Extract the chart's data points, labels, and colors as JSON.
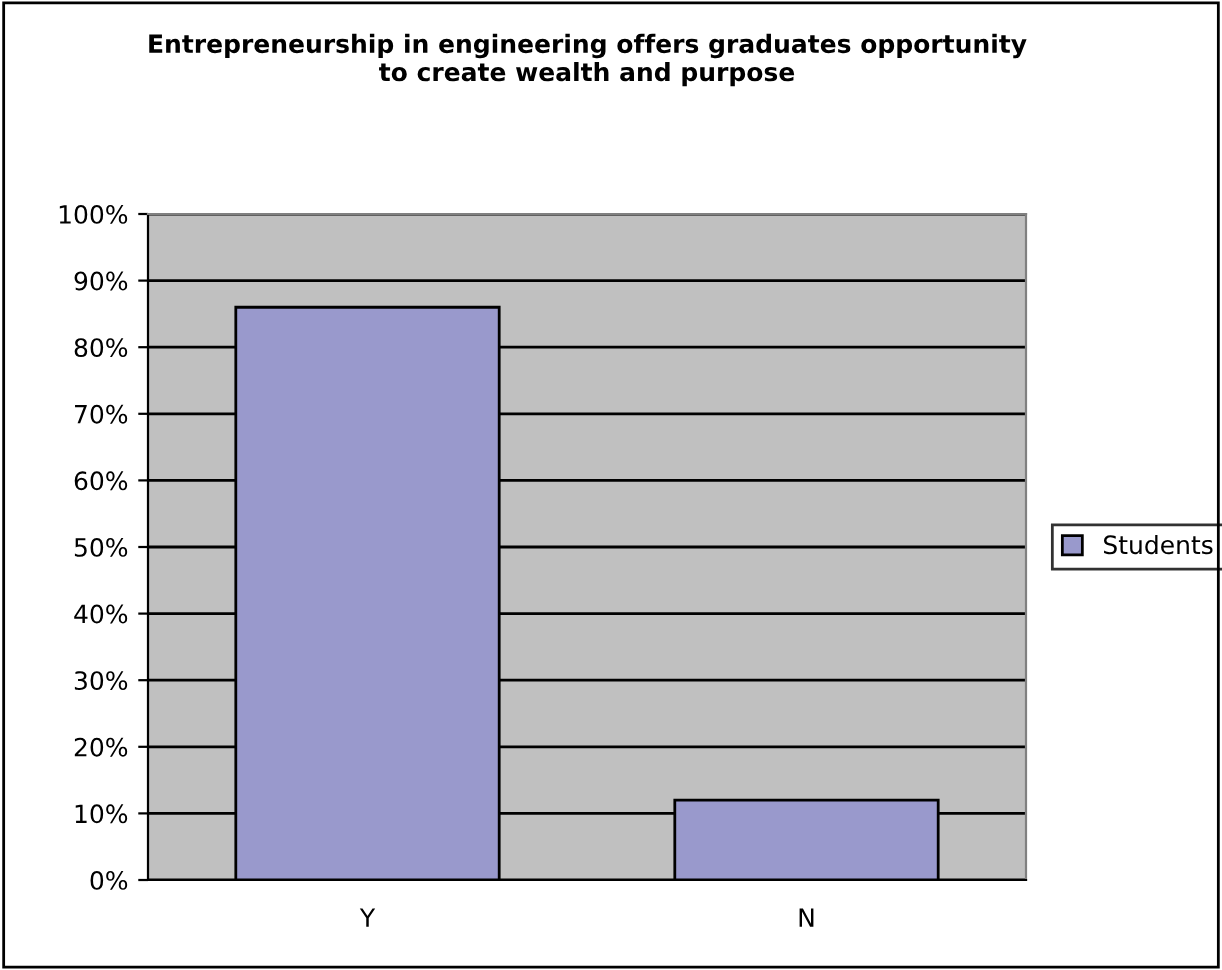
{
  "chart_data": {
    "type": "bar",
    "title": "Entrepreneurship in engineering offers graduates opportunity\nto create wealth and purpose",
    "categories": [
      "Y",
      "N"
    ],
    "series": [
      {
        "name": "Students",
        "color": "#9999cc",
        "values": [
          86,
          12
        ]
      }
    ],
    "ylim": [
      0,
      100
    ],
    "yticks": [
      {
        "value": 0,
        "label": "0%"
      },
      {
        "value": 10,
        "label": "10%"
      },
      {
        "value": 20,
        "label": "20%"
      },
      {
        "value": 30,
        "label": "30%"
      },
      {
        "value": 40,
        "label": "40%"
      },
      {
        "value": 50,
        "label": "50%"
      },
      {
        "value": 60,
        "label": "60%"
      },
      {
        "value": 70,
        "label": "70%"
      },
      {
        "value": 80,
        "label": "80%"
      },
      {
        "value": 90,
        "label": "90%"
      },
      {
        "value": 100,
        "label": "100%"
      }
    ],
    "grid": "y",
    "legend": "right"
  }
}
